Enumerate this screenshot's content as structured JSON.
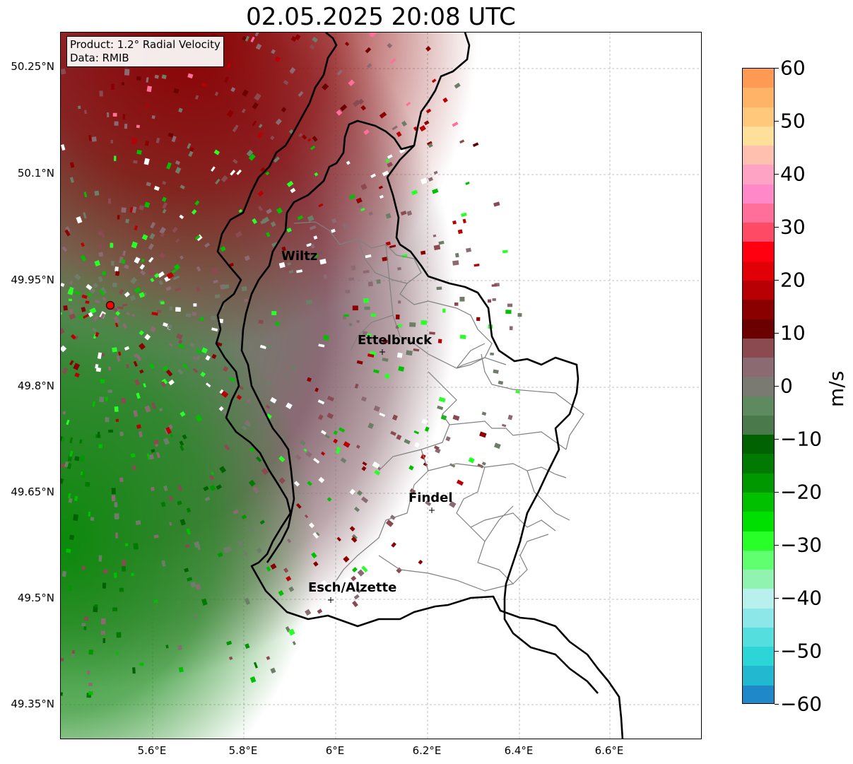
{
  "title": "02.05.2025 20:08 UTC",
  "info_box": {
    "product": "Product: 1.2° Radial Velocity",
    "data_source": "Data: RMIB"
  },
  "axes": {
    "lat_labels": [
      "50.25°N",
      "50.1°N",
      "49.95°N",
      "49.8°N",
      "49.65°N",
      "49.5°N",
      "49.35°N"
    ],
    "lon_labels": [
      "5.6°E",
      "5.8°E",
      "6°E",
      "6.2°E",
      "6.4°E",
      "6.6°E"
    ]
  },
  "cities": [
    "Wiltz",
    "Ettelbruck",
    "Findel",
    "Esch/Alzette"
  ],
  "colorbar": {
    "unit": "m/s",
    "tick_labels": [
      "60",
      "50",
      "40",
      "30",
      "20",
      "10",
      "0",
      "−10",
      "−20",
      "−30",
      "−40",
      "−50",
      "−60"
    ],
    "colors": [
      "#ff9a55",
      "#ffb366",
      "#ffc87a",
      "#ffe09a",
      "#ffc0b0",
      "#ffa3c4",
      "#ff88c8",
      "#ff6f9a",
      "#ff4a66",
      "#ff0010",
      "#e00006",
      "#b80004",
      "#8a0000",
      "#6a0000",
      "#8a4a50",
      "#8c6a72",
      "#7a7a72",
      "#5e8a60",
      "#4a7a4c",
      "#006200",
      "#007a00",
      "#009800",
      "#00c000",
      "#00e000",
      "#28ff28",
      "#60ff70",
      "#90f4b0",
      "#b8f0ee",
      "#8ce8e8",
      "#55dede",
      "#2cd6d6",
      "#22b8d0",
      "#1f88c8"
    ],
    "radar_marker_color": "#ff0000"
  }
}
